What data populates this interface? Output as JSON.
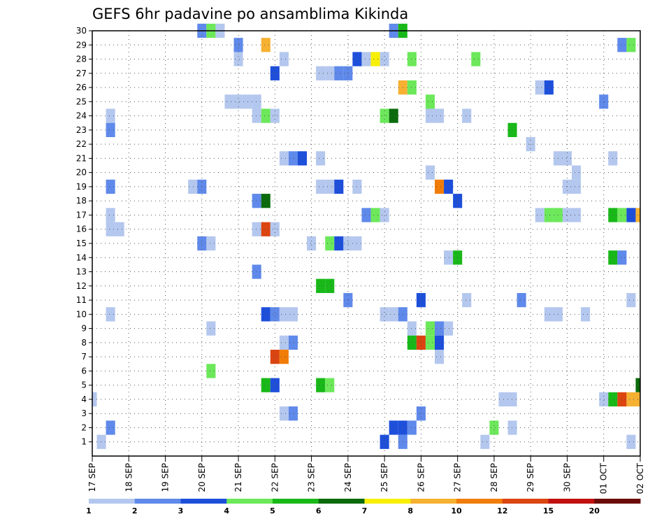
{
  "chart_data": {
    "type": "heatmap",
    "title": "GEFS 6hr padavine po ansamblima Kikinda",
    "xlabel": "",
    "ylabel": "",
    "x_tick_labels": [
      "17 SEP",
      "18 SEP",
      "19 SEP",
      "20 SEP",
      "21 SEP",
      "22 SEP",
      "23 SEP",
      "24 SEP",
      "25 SEP",
      "26 SEP",
      "27 SEP",
      "28 SEP",
      "29 SEP",
      "30 SEP",
      "01 OCT",
      "02 OCT"
    ],
    "x_range_steps": [
      0,
      60
    ],
    "y_tick_labels": [
      "1",
      "2",
      "3",
      "4",
      "5",
      "6",
      "7",
      "8",
      "9",
      "10",
      "11",
      "12",
      "13",
      "14",
      "15",
      "16",
      "17",
      "18",
      "19",
      "20",
      "21",
      "22",
      "23",
      "24",
      "25",
      "26",
      "27",
      "28",
      "29",
      "30"
    ],
    "y_range": [
      0,
      30
    ],
    "grid": true,
    "legend": {
      "placement": "bottom",
      "thresholds": [
        "1",
        "2",
        "3",
        "4",
        "5",
        "6",
        "7",
        "8",
        "10",
        "12",
        "15",
        "20"
      ],
      "colors": [
        "#b4c7ee",
        "#5f89ea",
        "#1d4fdb",
        "#6ce85a",
        "#19b819",
        "#0b6a0b",
        "#f7f006",
        "#f6b132",
        "#f17d08",
        "#dc4410",
        "#c11010",
        "#6b0a0a"
      ]
    },
    "cells_note": "each cell: member (row), 6-hour step index from 17 SEP 00Z, precipitation class index into legend.colors",
    "cells": [
      [
        30,
        12,
        1
      ],
      [
        30,
        13,
        3
      ],
      [
        30,
        14,
        0
      ],
      [
        30,
        33,
        1
      ],
      [
        30,
        34,
        4
      ],
      [
        29,
        16,
        1
      ],
      [
        29,
        19,
        7
      ],
      [
        29,
        58,
        1
      ],
      [
        29,
        59,
        3
      ],
      [
        28,
        16,
        0
      ],
      [
        28,
        21,
        0
      ],
      [
        28,
        29,
        2
      ],
      [
        28,
        30,
        0
      ],
      [
        28,
        31,
        6
      ],
      [
        28,
        32,
        0
      ],
      [
        28,
        35,
        3
      ],
      [
        28,
        42,
        3
      ],
      [
        27,
        20,
        2
      ],
      [
        27,
        25,
        0
      ],
      [
        27,
        26,
        0
      ],
      [
        27,
        27,
        1
      ],
      [
        27,
        28,
        1
      ],
      [
        26,
        34,
        7
      ],
      [
        26,
        35,
        3
      ],
      [
        26,
        49,
        0
      ],
      [
        26,
        50,
        2
      ],
      [
        25,
        15,
        0
      ],
      [
        25,
        16,
        0
      ],
      [
        25,
        17,
        0
      ],
      [
        25,
        18,
        0
      ],
      [
        25,
        37,
        3
      ],
      [
        25,
        56,
        1
      ],
      [
        24,
        2,
        0
      ],
      [
        24,
        18,
        0
      ],
      [
        24,
        19,
        3
      ],
      [
        24,
        20,
        0
      ],
      [
        24,
        32,
        3
      ],
      [
        24,
        33,
        5
      ],
      [
        24,
        37,
        0
      ],
      [
        24,
        38,
        0
      ],
      [
        24,
        41,
        0
      ],
      [
        23,
        2,
        1
      ],
      [
        23,
        46,
        4
      ],
      [
        22,
        48,
        0
      ],
      [
        21,
        21,
        0
      ],
      [
        21,
        22,
        1
      ],
      [
        21,
        23,
        2
      ],
      [
        21,
        25,
        0
      ],
      [
        21,
        51,
        0
      ],
      [
        21,
        52,
        0
      ],
      [
        21,
        57,
        0
      ],
      [
        20,
        37,
        0
      ],
      [
        20,
        53,
        0
      ],
      [
        19,
        2,
        1
      ],
      [
        19,
        11,
        0
      ],
      [
        19,
        12,
        1
      ],
      [
        19,
        25,
        0
      ],
      [
        19,
        26,
        0
      ],
      [
        19,
        27,
        2
      ],
      [
        19,
        29,
        0
      ],
      [
        19,
        38,
        8
      ],
      [
        19,
        39,
        2
      ],
      [
        19,
        52,
        0
      ],
      [
        19,
        53,
        0
      ],
      [
        18,
        18,
        1
      ],
      [
        18,
        19,
        5
      ],
      [
        18,
        40,
        2
      ],
      [
        17,
        2,
        0
      ],
      [
        17,
        30,
        1
      ],
      [
        17,
        31,
        3
      ],
      [
        17,
        32,
        0
      ],
      [
        17,
        49,
        0
      ],
      [
        17,
        50,
        3
      ],
      [
        17,
        51,
        3
      ],
      [
        17,
        52,
        0
      ],
      [
        17,
        53,
        0
      ],
      [
        17,
        57,
        4
      ],
      [
        17,
        58,
        3
      ],
      [
        17,
        59,
        2
      ],
      [
        17,
        60,
        7
      ],
      [
        16,
        2,
        0
      ],
      [
        16,
        3,
        0
      ],
      [
        16,
        18,
        0
      ],
      [
        16,
        19,
        9
      ],
      [
        16,
        20,
        0
      ],
      [
        15,
        12,
        1
      ],
      [
        15,
        13,
        0
      ],
      [
        15,
        24,
        0
      ],
      [
        15,
        26,
        3
      ],
      [
        15,
        27,
        2
      ],
      [
        15,
        28,
        0
      ],
      [
        15,
        29,
        0
      ],
      [
        14,
        39,
        0
      ],
      [
        14,
        40,
        4
      ],
      [
        14,
        57,
        4
      ],
      [
        14,
        58,
        1
      ],
      [
        13,
        18,
        1
      ],
      [
        12,
        25,
        4
      ],
      [
        12,
        26,
        4
      ],
      [
        11,
        28,
        1
      ],
      [
        11,
        36,
        2
      ],
      [
        11,
        41,
        0
      ],
      [
        11,
        47,
        1
      ],
      [
        11,
        59,
        0
      ],
      [
        10,
        2,
        0
      ],
      [
        10,
        19,
        2
      ],
      [
        10,
        20,
        1
      ],
      [
        10,
        21,
        0
      ],
      [
        10,
        22,
        0
      ],
      [
        10,
        32,
        0
      ],
      [
        10,
        33,
        0
      ],
      [
        10,
        34,
        1
      ],
      [
        10,
        50,
        0
      ],
      [
        10,
        51,
        0
      ],
      [
        10,
        54,
        0
      ],
      [
        9,
        13,
        0
      ],
      [
        9,
        35,
        0
      ],
      [
        9,
        37,
        3
      ],
      [
        9,
        38,
        1
      ],
      [
        9,
        39,
        0
      ],
      [
        8,
        21,
        0
      ],
      [
        8,
        22,
        1
      ],
      [
        8,
        35,
        4
      ],
      [
        8,
        36,
        9
      ],
      [
        8,
        37,
        3
      ],
      [
        8,
        38,
        2
      ],
      [
        7,
        20,
        9
      ],
      [
        7,
        21,
        8
      ],
      [
        7,
        38,
        0
      ],
      [
        6,
        13,
        3
      ],
      [
        5,
        19,
        4
      ],
      [
        5,
        20,
        2
      ],
      [
        5,
        25,
        4
      ],
      [
        5,
        26,
        3
      ],
      [
        5,
        60,
        5
      ],
      [
        4,
        45,
        0
      ],
      [
        4,
        46,
        0
      ],
      [
        4,
        56,
        0
      ],
      [
        4,
        57,
        4
      ],
      [
        4,
        58,
        9
      ],
      [
        4,
        59,
        7
      ],
      [
        4,
        60,
        7
      ],
      [
        3,
        21,
        0
      ],
      [
        3,
        22,
        1
      ],
      [
        3,
        36,
        1
      ],
      [
        2,
        2,
        1
      ],
      [
        2,
        33,
        2
      ],
      [
        2,
        34,
        2
      ],
      [
        2,
        35,
        1
      ],
      [
        2,
        44,
        3
      ],
      [
        2,
        46,
        0
      ],
      [
        1,
        1,
        0
      ],
      [
        1,
        32,
        2
      ],
      [
        1,
        34,
        1
      ],
      [
        1,
        43,
        0
      ],
      [
        1,
        59,
        0
      ]
    ],
    "initial_cells": [
      [
        4,
        0,
        0
      ]
    ]
  }
}
